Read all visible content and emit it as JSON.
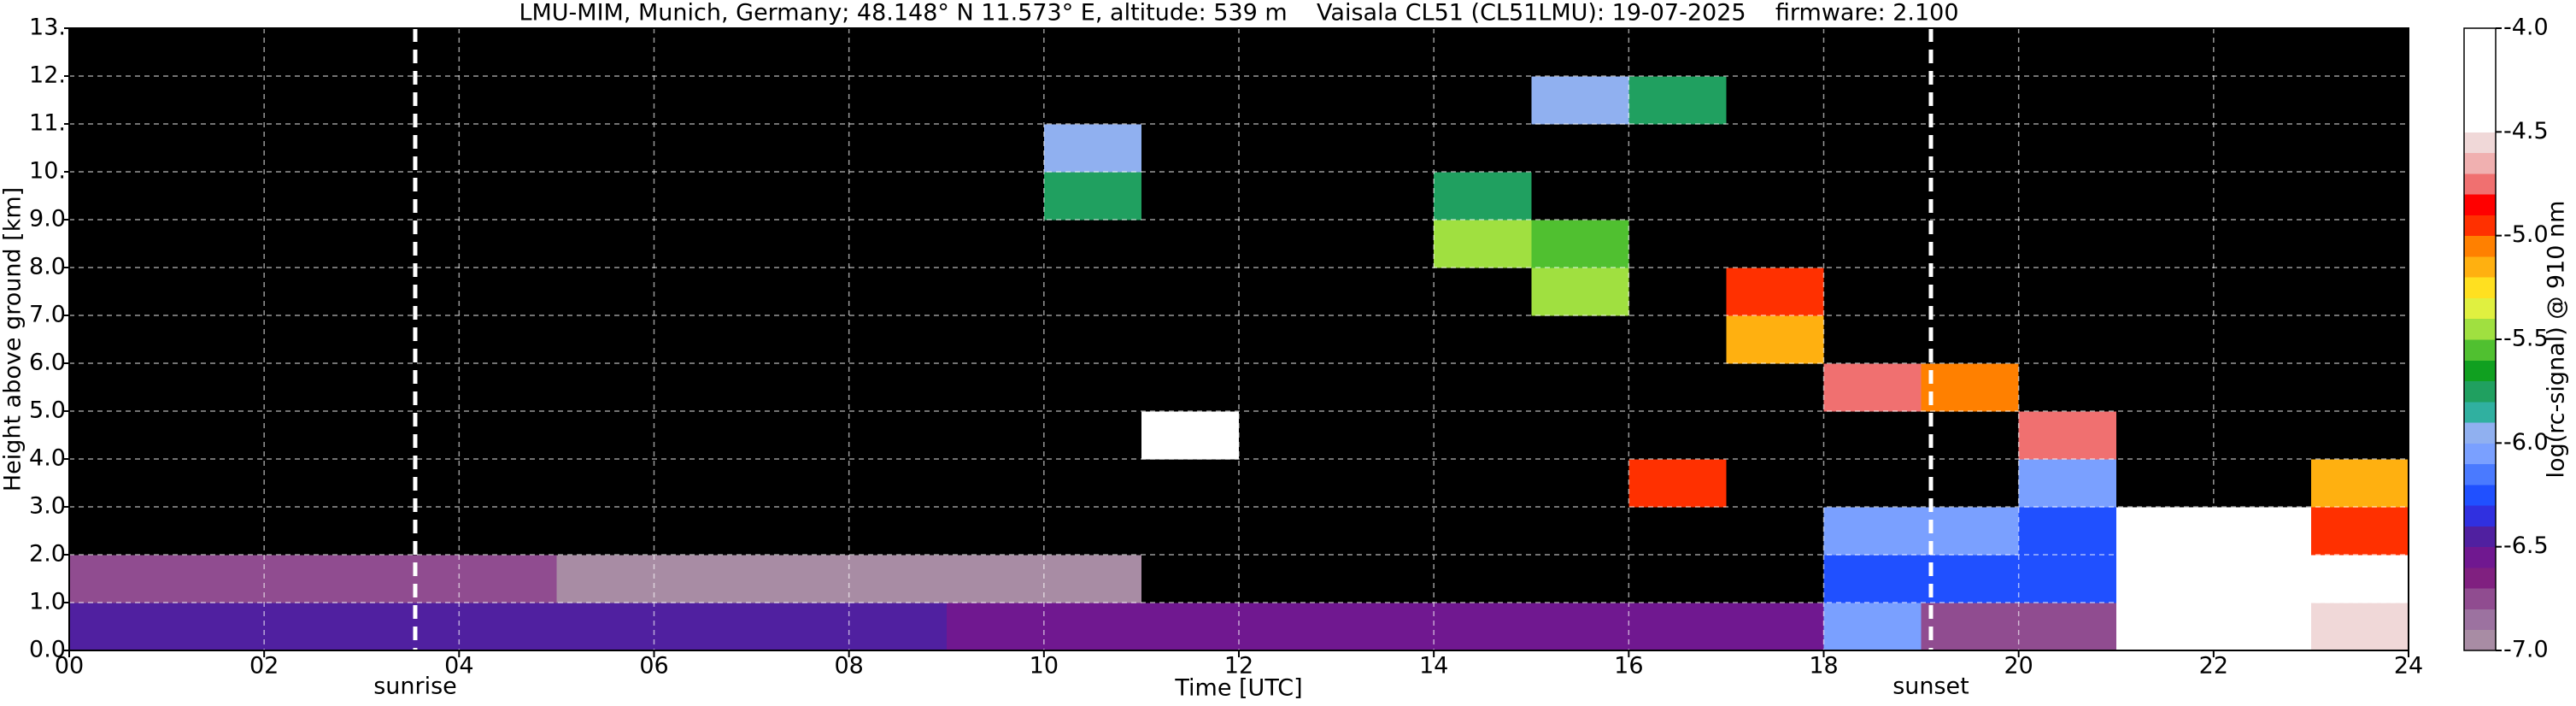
{
  "chart_data": {
    "type": "heatmap",
    "title": "LMU-MIM, Munich, Germany; 48.148° N 11.573° E, altitude: 539 m    Vaisala CL51 (CL51LMU): 19-07-2025    firmware: 2.100",
    "xlabel": "Time [UTC]",
    "ylabel": "Height above ground [km]",
    "colorbar_label": "log(rc-signal) @ 910 nm",
    "x": [
      0,
      1,
      2,
      3,
      4,
      5,
      6,
      7,
      8,
      9,
      10,
      11,
      12,
      13,
      14,
      15,
      16,
      17,
      18,
      19,
      20,
      21,
      22,
      23,
      24
    ],
    "y": [
      0,
      1,
      2,
      3,
      4,
      5,
      6,
      7,
      8,
      9,
      10,
      11,
      12,
      13
    ],
    "z": [
      [
        -6.4,
        -6.4,
        -6.4,
        -6.4,
        -6.4,
        -6.4,
        -6.4,
        -6.4,
        -6.4,
        -6.6,
        -6.6,
        -6.6,
        -6.6,
        -6.6,
        -6.6,
        -6.6,
        -6.6,
        -6.6,
        -6.1,
        -6.7,
        -6.7,
        -4.2,
        -4.2,
        -4.6
      ],
      [
        -6.8,
        -6.8,
        -6.8,
        -6.8,
        -6.8,
        -7.0,
        -7.0,
        -7.0,
        -7.0,
        -7.0,
        -7.0,
        -7.3,
        -7.3,
        -7.3,
        -7.3,
        -7.3,
        -7.3,
        -7.3,
        -6.2,
        -6.2,
        -6.2,
        -4.3,
        -4.3,
        -4.3
      ],
      [
        -7.3,
        -7.3,
        -7.3,
        -7.3,
        -7.3,
        -7.3,
        -7.3,
        -7.3,
        -7.3,
        -7.3,
        -7.3,
        -7.3,
        -7.3,
        -7.3,
        -7.3,
        -7.3,
        -7.3,
        -7.3,
        -6.1,
        -6.1,
        -6.2,
        -4.5,
        -4.5,
        -4.9
      ],
      [
        -7.3,
        -7.3,
        -7.3,
        -7.3,
        -7.3,
        -7.3,
        -7.3,
        -7.3,
        -7.3,
        -7.3,
        -7.3,
        -7.3,
        -7.3,
        -7.3,
        -7.3,
        -7.3,
        -5.0,
        -7.3,
        -7.3,
        -7.3,
        -6.1,
        -7.3,
        -7.3,
        -5.2
      ],
      [
        -7.3,
        -7.3,
        -7.3,
        -7.3,
        -7.3,
        -7.3,
        -7.3,
        -7.3,
        -7.3,
        -7.3,
        -7.3,
        -4.3,
        -7.3,
        -7.3,
        -7.3,
        -7.3,
        -7.3,
        -7.3,
        -7.3,
        -7.3,
        -4.8,
        -7.3,
        -7.3,
        -7.3
      ],
      [
        -7.3,
        -7.3,
        -7.3,
        -7.3,
        -7.3,
        -7.3,
        -7.3,
        -7.3,
        -7.3,
        -7.3,
        -7.3,
        -7.3,
        -7.3,
        -7.3,
        -7.3,
        -7.3,
        -7.3,
        -7.3,
        -4.8,
        -5.1,
        -7.3,
        -7.3,
        -7.3,
        -7.3
      ],
      [
        -7.3,
        -7.3,
        -7.3,
        -7.3,
        -7.3,
        -7.3,
        -7.3,
        -7.3,
        -7.3,
        -7.3,
        -7.3,
        -7.3,
        -7.3,
        -7.3,
        -7.3,
        -7.3,
        -7.3,
        -5.2,
        -7.3,
        -7.3,
        -7.3,
        -7.3,
        -7.3,
        -7.3
      ],
      [
        -7.3,
        -7.3,
        -7.3,
        -7.3,
        -7.3,
        -7.3,
        -7.3,
        -7.3,
        -7.3,
        -7.3,
        -7.3,
        -7.3,
        -7.3,
        -7.3,
        -7.3,
        -5.4,
        -7.3,
        -5.0,
        -7.3,
        -7.3,
        -7.3,
        -7.3,
        -7.3,
        -7.3
      ],
      [
        -7.3,
        -7.3,
        -7.3,
        -7.3,
        -7.3,
        -7.3,
        -7.3,
        -7.3,
        -7.3,
        -7.3,
        -7.3,
        -7.3,
        -7.3,
        -7.3,
        -5.5,
        -5.6,
        -7.3,
        -7.3,
        -7.3,
        -7.3,
        -7.3,
        -7.3,
        -7.3,
        -7.3
      ],
      [
        -7.3,
        -7.3,
        -7.3,
        -7.3,
        -7.3,
        -7.3,
        -7.3,
        -7.3,
        -7.3,
        -7.3,
        -5.8,
        -7.3,
        -7.3,
        -7.3,
        -5.7,
        -7.3,
        -7.3,
        -7.3,
        -7.3,
        -7.3,
        -7.3,
        -7.3,
        -7.3,
        -7.3
      ],
      [
        -7.3,
        -7.3,
        -7.3,
        -7.3,
        -7.3,
        -7.3,
        -7.3,
        -7.3,
        -7.3,
        -7.3,
        -5.9,
        -7.3,
        -7.3,
        -7.3,
        -7.3,
        -7.3,
        -7.3,
        -7.3,
        -7.3,
        -7.3,
        -7.3,
        -7.3,
        -7.3,
        -7.3
      ],
      [
        -7.3,
        -7.3,
        -7.3,
        -7.3,
        -7.3,
        -7.3,
        -7.3,
        -7.3,
        -7.3,
        -7.3,
        -7.3,
        -7.3,
        -7.3,
        -7.3,
        -7.3,
        -5.9,
        -5.8,
        -7.3,
        -7.3,
        -7.3,
        -7.3,
        -7.3,
        -7.3,
        -7.3
      ],
      [
        -7.3,
        -7.3,
        -7.3,
        -7.3,
        -7.3,
        -7.3,
        -7.3,
        -7.3,
        -7.3,
        -7.3,
        -7.3,
        -7.3,
        -7.3,
        -7.3,
        -7.3,
        -7.3,
        -7.3,
        -7.3,
        -7.3,
        -7.3,
        -7.3,
        -7.3,
        -7.3,
        -7.3
      ]
    ],
    "xlim": [
      0,
      24
    ],
    "ylim": [
      0,
      13
    ],
    "xticks": [
      {
        "value": 0,
        "label": "00"
      },
      {
        "value": 2,
        "label": "02"
      },
      {
        "value": 4,
        "label": "04"
      },
      {
        "value": 6,
        "label": "06"
      },
      {
        "value": 8,
        "label": "08"
      },
      10,
      12,
      14,
      16,
      18,
      20,
      22,
      24
    ],
    "yticks": [
      {
        "value": 0,
        "label": "0.0"
      },
      {
        "value": 1,
        "label": "1.0"
      },
      {
        "value": 2,
        "label": "2.0"
      },
      {
        "value": 3,
        "label": "3.0"
      },
      {
        "value": 4,
        "label": "4.0"
      },
      {
        "value": 5,
        "label": "5.0"
      },
      {
        "value": 6,
        "label": "6.0"
      },
      {
        "value": 7,
        "label": "7.0"
      },
      {
        "value": 8,
        "label": "8.0"
      },
      {
        "value": 9,
        "label": "9.0"
      },
      {
        "value": 10,
        "label": "10."
      },
      {
        "value": 11,
        "label": "11."
      },
      {
        "value": 12,
        "label": "12."
      },
      {
        "value": 13,
        "label": "13."
      }
    ],
    "clim": [
      -7,
      -4
    ],
    "cticks": [
      {
        "value": -4,
        "label": "-4.0"
      },
      -4.5,
      {
        "value": -5,
        "label": "-5.0"
      },
      -5.5,
      {
        "value": -6,
        "label": "-6.0"
      },
      -6.5,
      {
        "value": -7,
        "label": "-7.0"
      }
    ],
    "under_color": "#000000",
    "colorscale": [
      "#a88ca4",
      "#9c72a0",
      "#904c90",
      "#802080",
      "#701890",
      "#5020a0",
      "#3030e0",
      "#2050ff",
      "#4a7aff",
      "#7aa0ff",
      "#90b0f0",
      "#30b0a0",
      "#20a060",
      "#10a020",
      "#50c030",
      "#a0e040",
      "#e0f040",
      "#ffe020",
      "#ffb010",
      "#ff8000",
      "#ff3000",
      "#ff0000",
      "#f07070",
      "#f0b0b0",
      "#f0d8d8",
      "#ffffff",
      "#ffffff",
      "#ffffff",
      "#ffffff",
      "#ffffff"
    ],
    "grid": true,
    "annotations": [
      {
        "text": "sunrise",
        "x": 3.55
      },
      {
        "text": "sunset",
        "x": 19.1
      }
    ]
  }
}
